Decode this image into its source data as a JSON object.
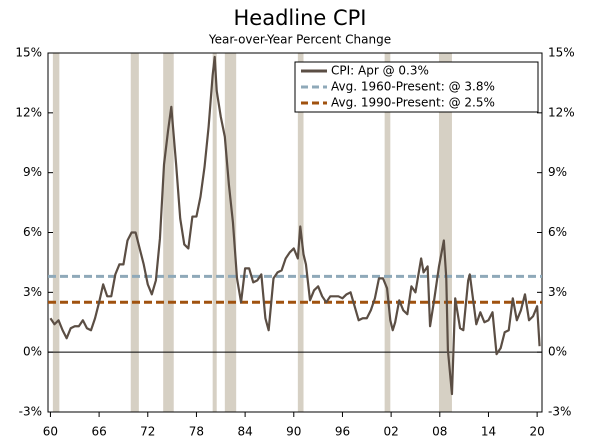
{
  "chart_data": {
    "type": "line",
    "title": "Headline CPI",
    "subtitle": "Year-over-Year Percent Change",
    "xlim": [
      1959.7,
      2020.6
    ],
    "xticks": [
      {
        "value": 1960,
        "label": "60"
      },
      {
        "value": 1966,
        "label": "66"
      },
      {
        "value": 1972,
        "label": "72"
      },
      {
        "value": 1978,
        "label": "78"
      },
      {
        "value": 1984,
        "label": "84"
      },
      {
        "value": 1990,
        "label": "90"
      },
      {
        "value": 1996,
        "label": "96"
      },
      {
        "value": 2002,
        "label": "02"
      },
      {
        "value": 2008,
        "label": "08"
      },
      {
        "value": 2014,
        "label": "14"
      },
      {
        "value": 2020,
        "label": "20"
      }
    ],
    "ylim": [
      -3,
      15
    ],
    "yticks": [
      {
        "value": -3,
        "label": "-3%"
      },
      {
        "value": 0,
        "label": "0%"
      },
      {
        "value": 3,
        "label": "3%"
      },
      {
        "value": 6,
        "label": "6%"
      },
      {
        "value": 9,
        "label": "9%"
      },
      {
        "value": 12,
        "label": "12%"
      },
      {
        "value": 15,
        "label": "15%"
      }
    ],
    "y2lim": [
      -3,
      15
    ],
    "y2ticks": [
      {
        "value": -3,
        "label": "-3%"
      },
      {
        "value": 0,
        "label": "0%"
      },
      {
        "value": 3,
        "label": "3%"
      },
      {
        "value": 6,
        "label": "6%"
      },
      {
        "value": 9,
        "label": "9%"
      },
      {
        "value": 12,
        "label": "12%"
      },
      {
        "value": 15,
        "label": "15%"
      }
    ],
    "recession_color": "#d6d0c4",
    "recessions": [
      [
        1960.3,
        1961.1
      ],
      [
        1969.9,
        1970.9
      ],
      [
        1973.9,
        1975.2
      ],
      [
        1980.0,
        1980.5
      ],
      [
        1981.5,
        1982.9
      ],
      [
        1990.5,
        1991.2
      ],
      [
        2001.2,
        2001.9
      ],
      [
        2007.9,
        2009.5
      ]
    ],
    "series": [
      {
        "name": "CPI: Apr @ 0.3%",
        "color": "#5b4e44",
        "x": [
          1960,
          1960.5,
          1961,
          1961.5,
          1962,
          1962.5,
          1963,
          1963.5,
          1964,
          1964.5,
          1965,
          1965.5,
          1966,
          1966.5,
          1967,
          1967.5,
          1968,
          1968.5,
          1969,
          1969.5,
          1970,
          1970.5,
          1971,
          1971.5,
          1972,
          1972.5,
          1973,
          1973.5,
          1974,
          1974.5,
          1974.9,
          1975.5,
          1976,
          1976.5,
          1977,
          1977.5,
          1978,
          1978.5,
          1979,
          1979.5,
          1980,
          1980.25,
          1980.5,
          1981,
          1981.5,
          1982,
          1982.5,
          1983,
          1983.5,
          1984,
          1984.5,
          1985,
          1985.5,
          1986,
          1986.5,
          1986.9,
          1987.5,
          1988,
          1988.5,
          1989,
          1989.5,
          1990,
          1990.5,
          1990.8,
          1991.2,
          1991.5,
          1992,
          1992.5,
          1993,
          1993.5,
          1994,
          1994.5,
          1995,
          1995.5,
          1996,
          1996.5,
          1997,
          1997.5,
          1998,
          1998.5,
          1999,
          1999.5,
          2000,
          2000.5,
          2001,
          2001.5,
          2001.9,
          2002.2,
          2002.5,
          2003,
          2003.5,
          2004,
          2004.5,
          2005,
          2005.7,
          2006,
          2006.5,
          2006.8,
          2007.3,
          2007.9,
          2008.5,
          2008.8,
          2009.0,
          2009.5,
          2009.9,
          2010.5,
          2010.9,
          2011.5,
          2011.7,
          2012.5,
          2013,
          2013.5,
          2014,
          2014.5,
          2015,
          2015.5,
          2016,
          2016.5,
          2017,
          2017.5,
          2018,
          2018.5,
          2019,
          2019.5,
          2020,
          2020.3
        ],
        "values": [
          1.7,
          1.4,
          1.6,
          1.1,
          0.7,
          1.2,
          1.3,
          1.3,
          1.6,
          1.2,
          1.1,
          1.7,
          2.5,
          3.4,
          2.8,
          2.8,
          3.9,
          4.4,
          4.4,
          5.6,
          6.0,
          6.0,
          5.2,
          4.4,
          3.4,
          2.9,
          3.6,
          5.7,
          9.4,
          11.1,
          12.3,
          9.4,
          6.7,
          5.4,
          5.2,
          6.8,
          6.8,
          7.8,
          9.3,
          11.3,
          13.9,
          14.8,
          13.1,
          11.8,
          10.8,
          8.4,
          6.5,
          3.7,
          2.5,
          4.2,
          4.2,
          3.5,
          3.6,
          3.9,
          1.7,
          1.1,
          3.7,
          4.0,
          4.1,
          4.7,
          5.0,
          5.2,
          4.7,
          6.3,
          4.9,
          4.4,
          2.6,
          3.1,
          3.3,
          2.8,
          2.5,
          2.8,
          2.8,
          2.8,
          2.7,
          2.9,
          3.0,
          2.3,
          1.6,
          1.7,
          1.7,
          2.1,
          2.7,
          3.7,
          3.7,
          3.2,
          1.6,
          1.1,
          1.5,
          2.6,
          2.1,
          1.9,
          3.3,
          3.0,
          4.7,
          4.0,
          4.3,
          1.3,
          2.6,
          4.3,
          5.6,
          3.7,
          0.1,
          -2.1,
          2.7,
          1.2,
          1.1,
          3.6,
          3.9,
          1.4,
          2.0,
          1.5,
          1.6,
          2.0,
          -0.1,
          0.2,
          1.0,
          1.1,
          2.7,
          1.6,
          2.1,
          2.9,
          1.6,
          1.8,
          2.3,
          0.3
        ]
      }
    ],
    "reference_lines": [
      {
        "name": "Avg. 1960-Present: @ 3.8%",
        "value": 3.8,
        "color": "#8fa9b9"
      },
      {
        "name": "Avg. 1990-Present: @ 2.5%",
        "value": 2.5,
        "color": "#a0520f"
      }
    ]
  }
}
